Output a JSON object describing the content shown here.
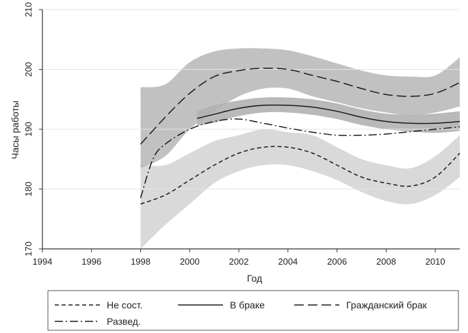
{
  "chart_data": {
    "type": "line",
    "xlabel": "Год",
    "ylabel": "Часы работы",
    "xlim": [
      1994,
      2011
    ],
    "ylim": [
      170,
      210
    ],
    "xticks": [
      1994,
      1996,
      1998,
      2000,
      2002,
      2004,
      2006,
      2008,
      2010
    ],
    "yticks": [
      170,
      180,
      190,
      200,
      210
    ],
    "grid": true,
    "legend_position": "bottom",
    "series": [
      {
        "name": "Не сост.",
        "dash": "dash",
        "x": [
          1998,
          1999,
          2000,
          2001,
          2002,
          2003,
          2004,
          2005,
          2006,
          2007,
          2008,
          2009,
          2010,
          2011
        ],
        "y": [
          177.5,
          179,
          181.5,
          184,
          186,
          187,
          187,
          186,
          184,
          182,
          181,
          180.5,
          182,
          186
        ],
        "ci_upper": [
          184,
          184,
          186,
          188,
          189,
          190,
          189.5,
          189,
          187,
          185,
          184,
          183.5,
          185.5,
          189
        ],
        "ci_lower": [
          170,
          174,
          177.5,
          181,
          183,
          184,
          184,
          183,
          181.5,
          179.5,
          178,
          177.5,
          179,
          182
        ]
      },
      {
        "name": "В браке",
        "dash": "solid",
        "x": [
          2000.3,
          2001,
          2002,
          2003,
          2004,
          2005,
          2006,
          2007,
          2008,
          2009,
          2010,
          2011
        ],
        "y": [
          191.8,
          192.5,
          193.5,
          194,
          194,
          193.7,
          193,
          192,
          191.3,
          191,
          191,
          191.3
        ],
        "ci_upper": [
          193,
          194,
          194.8,
          195.3,
          195.3,
          195,
          194.3,
          193.3,
          192.6,
          192.4,
          192.6,
          193
        ],
        "ci_lower": [
          190.6,
          191.1,
          192.2,
          192.8,
          192.8,
          192.4,
          191.7,
          190.7,
          190,
          189.6,
          189.4,
          189.7
        ]
      },
      {
        "name": "Гражданский брак",
        "dash": "longdash",
        "x": [
          1998,
          1999,
          2000,
          2001,
          2002,
          2003,
          2004,
          2005,
          2006,
          2007,
          2008,
          2009,
          2010,
          2011
        ],
        "y": [
          187.5,
          192,
          196,
          198.8,
          199.8,
          200.2,
          200,
          199,
          198,
          196.8,
          195.8,
          195.5,
          196,
          197.8
        ],
        "ci_upper": [
          197,
          197.5,
          201.2,
          203,
          203.5,
          203.5,
          203.2,
          202.2,
          201,
          199.8,
          199,
          198.8,
          199,
          202
        ],
        "ci_lower": [
          183.5,
          185.5,
          190,
          193,
          195.5,
          196.8,
          196.8,
          195.5,
          194.5,
          193.5,
          192.8,
          192.3,
          192.8,
          193.8
        ]
      },
      {
        "name": "Развед.",
        "dash": "dashdot",
        "x": [
          1998,
          1998.5,
          1999,
          2000,
          2001,
          2002,
          2003,
          2004,
          2005,
          2006,
          2007,
          2008,
          2009,
          2010,
          2011
        ],
        "y": [
          178.5,
          185,
          187.5,
          190,
          191.3,
          191.7,
          191,
          190.2,
          189.5,
          189,
          189,
          189.2,
          189.6,
          190,
          190.4
        ],
        "ci_upper": [],
        "ci_lower": []
      }
    ]
  }
}
